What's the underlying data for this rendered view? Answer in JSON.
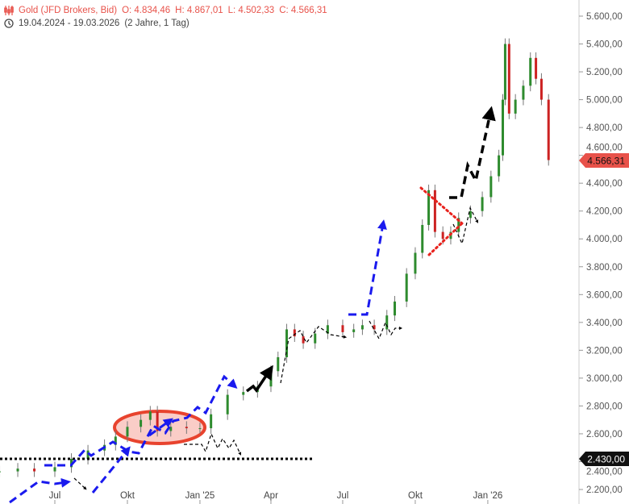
{
  "header": {
    "instrument_icon": "candlestick-icon",
    "title": "Gold (JFD Brokers, Bid)",
    "open": "O: 4.834,46",
    "high": "H: 4.867,01",
    "low": "L: 4.502,33",
    "close": "C: 4.566,31",
    "range_icon": "clock-icon",
    "date_range": "19.04.2024 - 19.03.2026",
    "duration": "(2 Jahre, 1 Tag)"
  },
  "colors": {
    "up": "#2e8b2e",
    "down": "#cc2222",
    "last_price": "#e8524a",
    "annotation_blue": "#1a1aee",
    "annotation_red": "#e8432e"
  },
  "chart_data": {
    "type": "line",
    "title": "Gold (JFD Brokers, Bid)",
    "xlim": [
      "2024-04-19",
      "2026-03-19"
    ],
    "ylim": [
      2150,
      5700
    ],
    "y_ticks": [
      "5.600,00",
      "5.400,00",
      "5.200,00",
      "5.000,00",
      "4.800,00",
      "4.600,00",
      "4.400,00",
      "4.200,00",
      "4.000,00",
      "3.800,00",
      "3.600,00",
      "3.400,00",
      "3.200,00",
      "3.000,00",
      "2.800,00",
      "2.600,00",
      "2.400,00",
      "2.200,00"
    ],
    "y_tick_values": [
      5600,
      5400,
      5200,
      5000,
      4800,
      4600,
      4400,
      4200,
      4000,
      3800,
      3600,
      3400,
      3200,
      3000,
      2800,
      2600,
      2400,
      2200
    ],
    "x_ticks": [
      {
        "label": "Jul",
        "date": "2024-07-01"
      },
      {
        "label": "Okt",
        "date": "2024-10-01"
      },
      {
        "label": "Jan '25",
        "date": "2025-01-01"
      },
      {
        "label": "Apr",
        "date": "2025-04-01"
      },
      {
        "label": "Jul",
        "date": "2025-07-01"
      },
      {
        "label": "Okt",
        "date": "2025-10-01"
      },
      {
        "label": "Jan '26",
        "date": "2026-01-01"
      }
    ],
    "grid": false,
    "last_price": {
      "value": 4566.31,
      "label": "4.566,31"
    },
    "support_line": {
      "value": 2430,
      "label": "2.430,00"
    },
    "series": [
      {
        "dates": [
          "2024-04-22",
          "2024-05-15",
          "2024-06-05",
          "2024-07-01",
          "2024-07-22",
          "2024-08-12",
          "2024-09-02",
          "2024-09-16",
          "2024-10-01",
          "2024-10-18",
          "2024-10-30",
          "2024-11-08",
          "2024-11-25",
          "2024-12-15",
          "2025-01-01",
          "2025-01-15",
          "2025-02-05",
          "2025-02-25",
          "2025-03-15",
          "2025-04-01",
          "2025-04-10",
          "2025-04-21",
          "2025-05-01",
          "2025-05-12",
          "2025-05-27",
          "2025-06-12",
          "2025-07-01",
          "2025-07-15",
          "2025-07-26",
          "2025-08-10",
          "2025-08-26",
          "2025-09-05",
          "2025-09-20",
          "2025-10-01",
          "2025-10-10",
          "2025-10-18",
          "2025-10-26",
          "2025-11-05",
          "2025-11-15",
          "2025-11-25",
          "2025-12-10",
          "2025-12-25",
          "2026-01-05",
          "2026-01-15",
          "2026-01-20",
          "2026-01-23",
          "2026-01-28",
          "2026-02-05",
          "2026-02-15",
          "2026-02-24",
          "2026-03-03",
          "2026-03-10",
          "2026-03-19"
        ],
        "close": [
          2330,
          2350,
          2330,
          2360,
          2420,
          2480,
          2520,
          2580,
          2650,
          2700,
          2760,
          2620,
          2650,
          2640,
          2640,
          2740,
          2880,
          2900,
          2940,
          3050,
          3150,
          3350,
          3300,
          3250,
          3320,
          3380,
          3330,
          3350,
          3380,
          3350,
          3450,
          3550,
          3750,
          3900,
          4100,
          4350,
          4050,
          4000,
          4050,
          4150,
          4200,
          4300,
          4450,
          4600,
          5000,
          5400,
          4900,
          5000,
          5100,
          5300,
          5150,
          5000,
          4566.31
        ]
      }
    ]
  }
}
